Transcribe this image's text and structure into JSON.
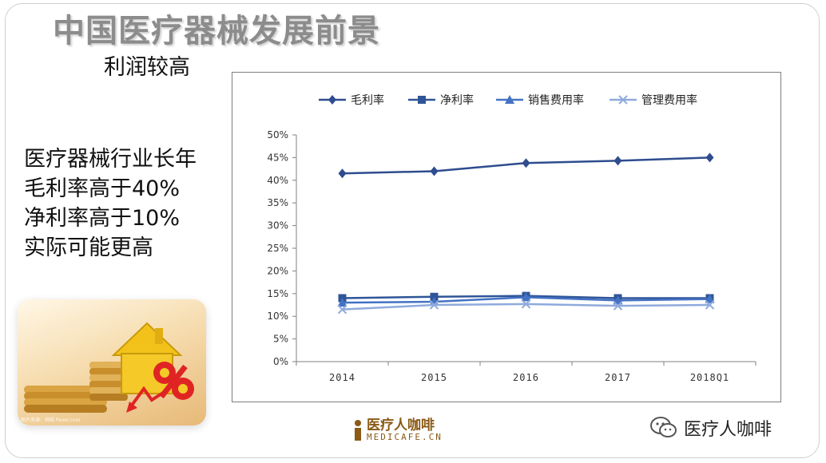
{
  "slide": {
    "title": "中国医疗器械发展前景",
    "subtitle": "利润较高",
    "bullets": [
      "医疗器械行业长年",
      "毛利率高于40%",
      "净利率高于10%",
      "实际可能更高"
    ]
  },
  "photo": {
    "caption": "图片来源：网络 Pexel.com",
    "badge_text": "%",
    "icons": [
      "house-icon",
      "coins-stack",
      "down-arrow-icon",
      "percent-icon"
    ]
  },
  "logo": {
    "cn": "医疗人咖啡",
    "en": "MEDICAFE.CN",
    "icon": "cup-icon"
  },
  "wechat": {
    "label": "医疗人咖啡",
    "icon": "wechat-icon"
  },
  "colors": {
    "series_gross": "#2E4C8E",
    "series_net": "#2F5597",
    "series_sales": "#4472C4",
    "series_admin": "#8FAADC",
    "title_gray": "#8C8C8C",
    "logo_brown": "#8A5A16"
  },
  "chart_data": {
    "type": "line",
    "categories": [
      "2014",
      "2015",
      "2016",
      "2017",
      "2018Q1"
    ],
    "series": [
      {
        "name": "毛利率",
        "marker": "diamond",
        "values": [
          41.5,
          42.0,
          43.8,
          44.3,
          45.0
        ]
      },
      {
        "name": "净利率",
        "marker": "square",
        "values": [
          14.0,
          14.3,
          14.5,
          14.0,
          14.0
        ]
      },
      {
        "name": "销售费用率",
        "marker": "triangle",
        "values": [
          13.0,
          13.2,
          14.2,
          13.5,
          13.8
        ]
      },
      {
        "name": "管理费用率",
        "marker": "x",
        "values": [
          11.5,
          12.5,
          12.7,
          12.3,
          12.5
        ]
      }
    ],
    "ylim": [
      0,
      50
    ],
    "yticks": [
      "0%",
      "5%",
      "10%",
      "15%",
      "20%",
      "25%",
      "30%",
      "35%",
      "40%",
      "45%",
      "50%"
    ],
    "legend_position": "top",
    "grid": false
  }
}
